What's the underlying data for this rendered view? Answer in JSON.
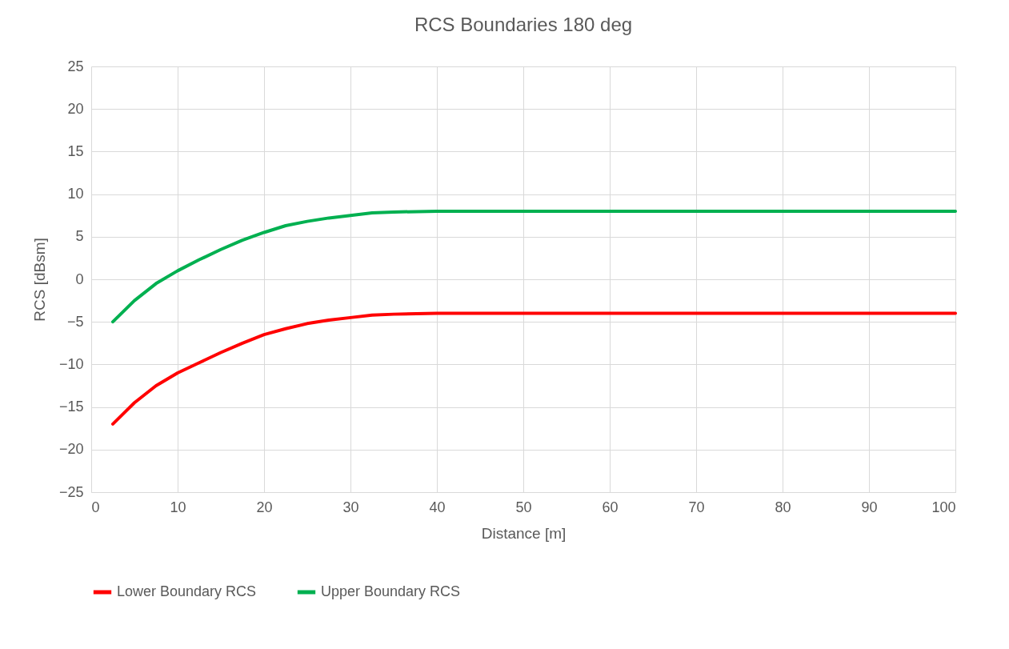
{
  "chart_data": {
    "type": "line",
    "title": "RCS Boundaries 180 deg",
    "xlabel": "Distance [m]",
    "ylabel": "RCS [dBsm]",
    "x": [
      2.5,
      5,
      7.5,
      10,
      12.5,
      15,
      17.5,
      20,
      22.5,
      25,
      27.5,
      30,
      32.5,
      35,
      40,
      45,
      50,
      60,
      70,
      80,
      90,
      100
    ],
    "series": [
      {
        "name": "Lower Boundary RCS",
        "color": "#ff0000",
        "values": [
          -17,
          -14.5,
          -12.5,
          -11,
          -9.8,
          -8.6,
          -7.5,
          -6.5,
          -5.8,
          -5.2,
          -4.8,
          -4.5,
          -4.2,
          -4.1,
          -4,
          -4,
          -4,
          -4,
          -4,
          -4,
          -4,
          -4
        ]
      },
      {
        "name": "Upper Boundary RCS",
        "color": "#00b050",
        "values": [
          -5,
          -2.5,
          -0.5,
          1,
          2.3,
          3.5,
          4.6,
          5.5,
          6.3,
          6.8,
          7.2,
          7.5,
          7.8,
          7.9,
          8,
          8,
          8,
          8,
          8,
          8,
          8,
          8
        ]
      }
    ],
    "xlim": [
      0,
      100
    ],
    "xticks": [
      0,
      10,
      20,
      30,
      40,
      50,
      60,
      70,
      80,
      90,
      100
    ],
    "ylim": [
      -25,
      25
    ],
    "yticks": [
      -25,
      -20,
      -15,
      -10,
      -5,
      0,
      5,
      10,
      15,
      20,
      25
    ],
    "grid": true,
    "legend": "bottom",
    "marker": "none",
    "line_style": "solid"
  }
}
